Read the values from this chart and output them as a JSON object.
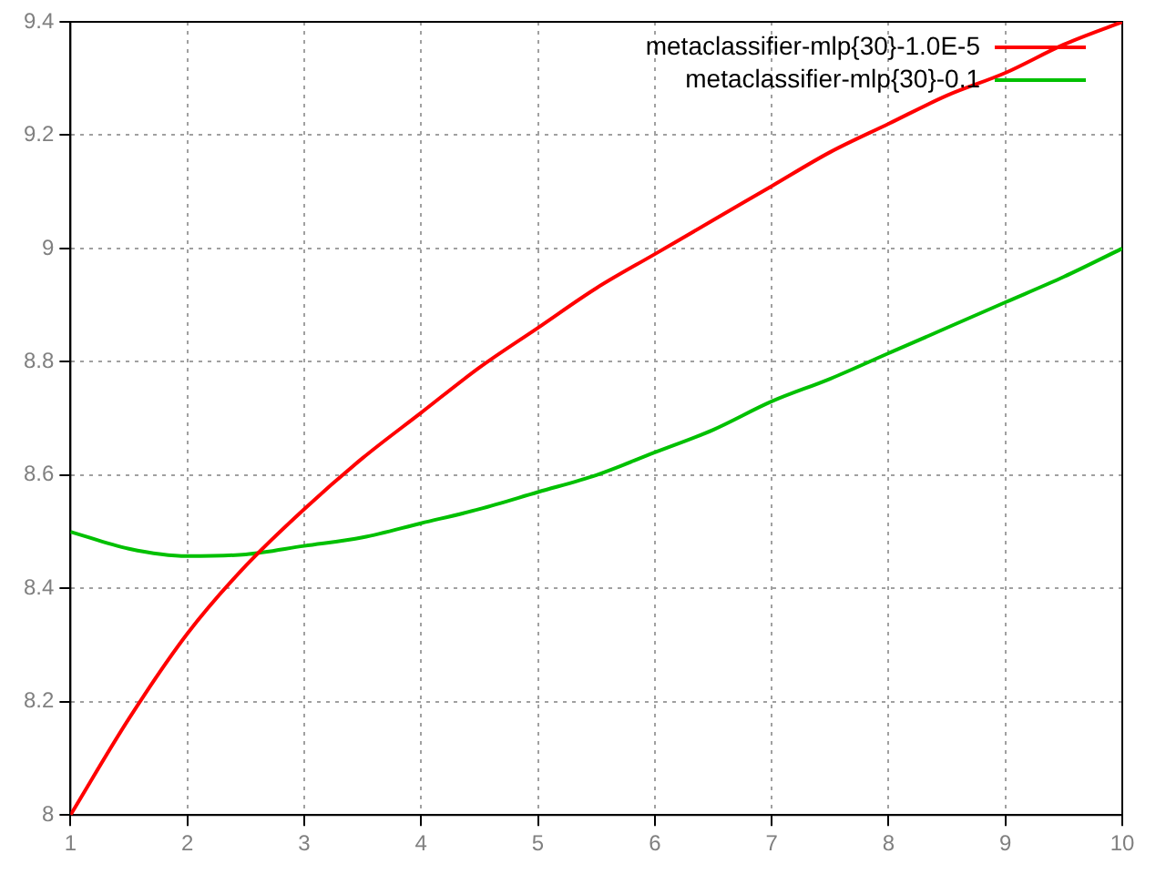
{
  "chart_data": {
    "type": "line",
    "xlim": [
      1,
      10
    ],
    "ylim": [
      8,
      9.4
    ],
    "xticks": [
      1,
      2,
      3,
      4,
      5,
      6,
      7,
      8,
      9,
      10
    ],
    "yticks": [
      8,
      8.2,
      8.4,
      8.6,
      8.8,
      9,
      9.2,
      9.4
    ],
    "grid": true,
    "legend": "top right",
    "marker": "none",
    "line_style": "solid",
    "series": [
      {
        "name": "metaclassifier-mlp{30}-1.0E-5",
        "color": "#ff0000",
        "x": [
          1,
          1.5,
          2,
          2.5,
          3,
          3.5,
          4,
          4.5,
          5,
          5.5,
          6,
          6.5,
          7,
          7.5,
          8,
          8.5,
          9,
          9.5,
          10
        ],
        "values": [
          8,
          8.17,
          8.32,
          8.44,
          8.54,
          8.63,
          8.71,
          8.79,
          8.86,
          8.93,
          8.99,
          9.05,
          9.11,
          9.17,
          9.22,
          9.27,
          9.31,
          9.36,
          9.4
        ]
      },
      {
        "name": "metaclassifier-mlp{30}-0.1",
        "color": "#00c000",
        "x": [
          1,
          1.5,
          2,
          2.5,
          3,
          3.5,
          4,
          4.5,
          5,
          5.5,
          6,
          6.5,
          7,
          7.5,
          8,
          8.5,
          9,
          9.5,
          10
        ],
        "values": [
          8.5,
          8.47,
          8.457,
          8.46,
          8.475,
          8.49,
          8.515,
          8.54,
          8.57,
          8.6,
          8.64,
          8.68,
          8.73,
          8.77,
          8.815,
          8.86,
          8.905,
          8.95,
          9
        ]
      }
    ]
  }
}
